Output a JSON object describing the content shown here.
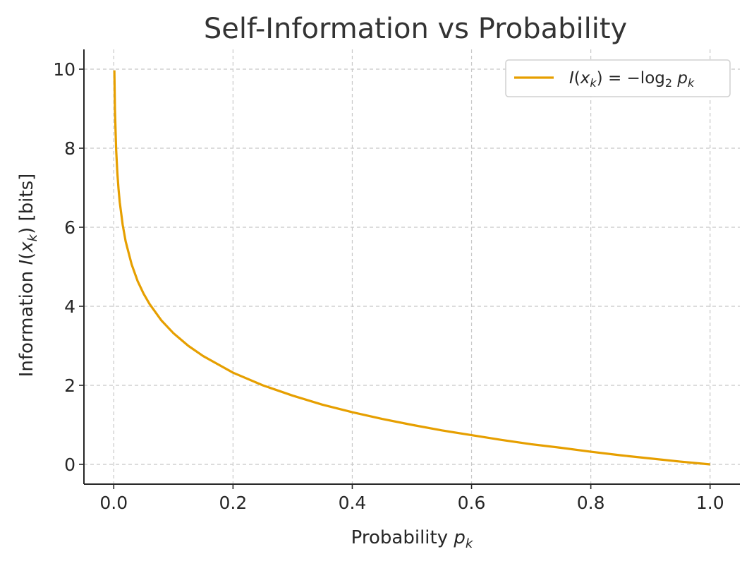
{
  "chart_data": {
    "type": "line",
    "title": "Self-Information vs Probability",
    "xlabel": "Probability p_k",
    "ylabel": "Information I(x_k) [bits]",
    "xlim": [
      -0.05,
      1.05
    ],
    "ylim": [
      -0.5,
      10.5
    ],
    "xticks": [
      0.0,
      0.2,
      0.4,
      0.6,
      0.8,
      1.0
    ],
    "xtick_labels": [
      "0.0",
      "0.2",
      "0.4",
      "0.6",
      "0.8",
      "1.0"
    ],
    "yticks": [
      0,
      2,
      4,
      6,
      8,
      10
    ],
    "ytick_labels": [
      "0",
      "2",
      "4",
      "6",
      "8",
      "10"
    ],
    "grid": true,
    "legend_position": "top-right",
    "series": [
      {
        "name": "I(x_k) = −log₂ p_k",
        "color": "#E69F00",
        "x": [
          0.001,
          0.002,
          0.004,
          0.006,
          0.008,
          0.01,
          0.015,
          0.02,
          0.03,
          0.04,
          0.05,
          0.06,
          0.08,
          0.1,
          0.125,
          0.15,
          0.2,
          0.25,
          0.3,
          0.35,
          0.4,
          0.45,
          0.5,
          0.55,
          0.6,
          0.65,
          0.7,
          0.75,
          0.8,
          0.85,
          0.9,
          0.95,
          1.0
        ],
        "y": [
          9.97,
          8.97,
          7.97,
          7.38,
          6.97,
          6.64,
          6.06,
          5.64,
          5.06,
          4.64,
          4.32,
          4.06,
          3.64,
          3.32,
          3.0,
          2.74,
          2.32,
          2.0,
          1.74,
          1.51,
          1.32,
          1.15,
          1.0,
          0.86,
          0.74,
          0.62,
          0.51,
          0.42,
          0.32,
          0.23,
          0.15,
          0.07,
          0.0
        ]
      }
    ]
  }
}
